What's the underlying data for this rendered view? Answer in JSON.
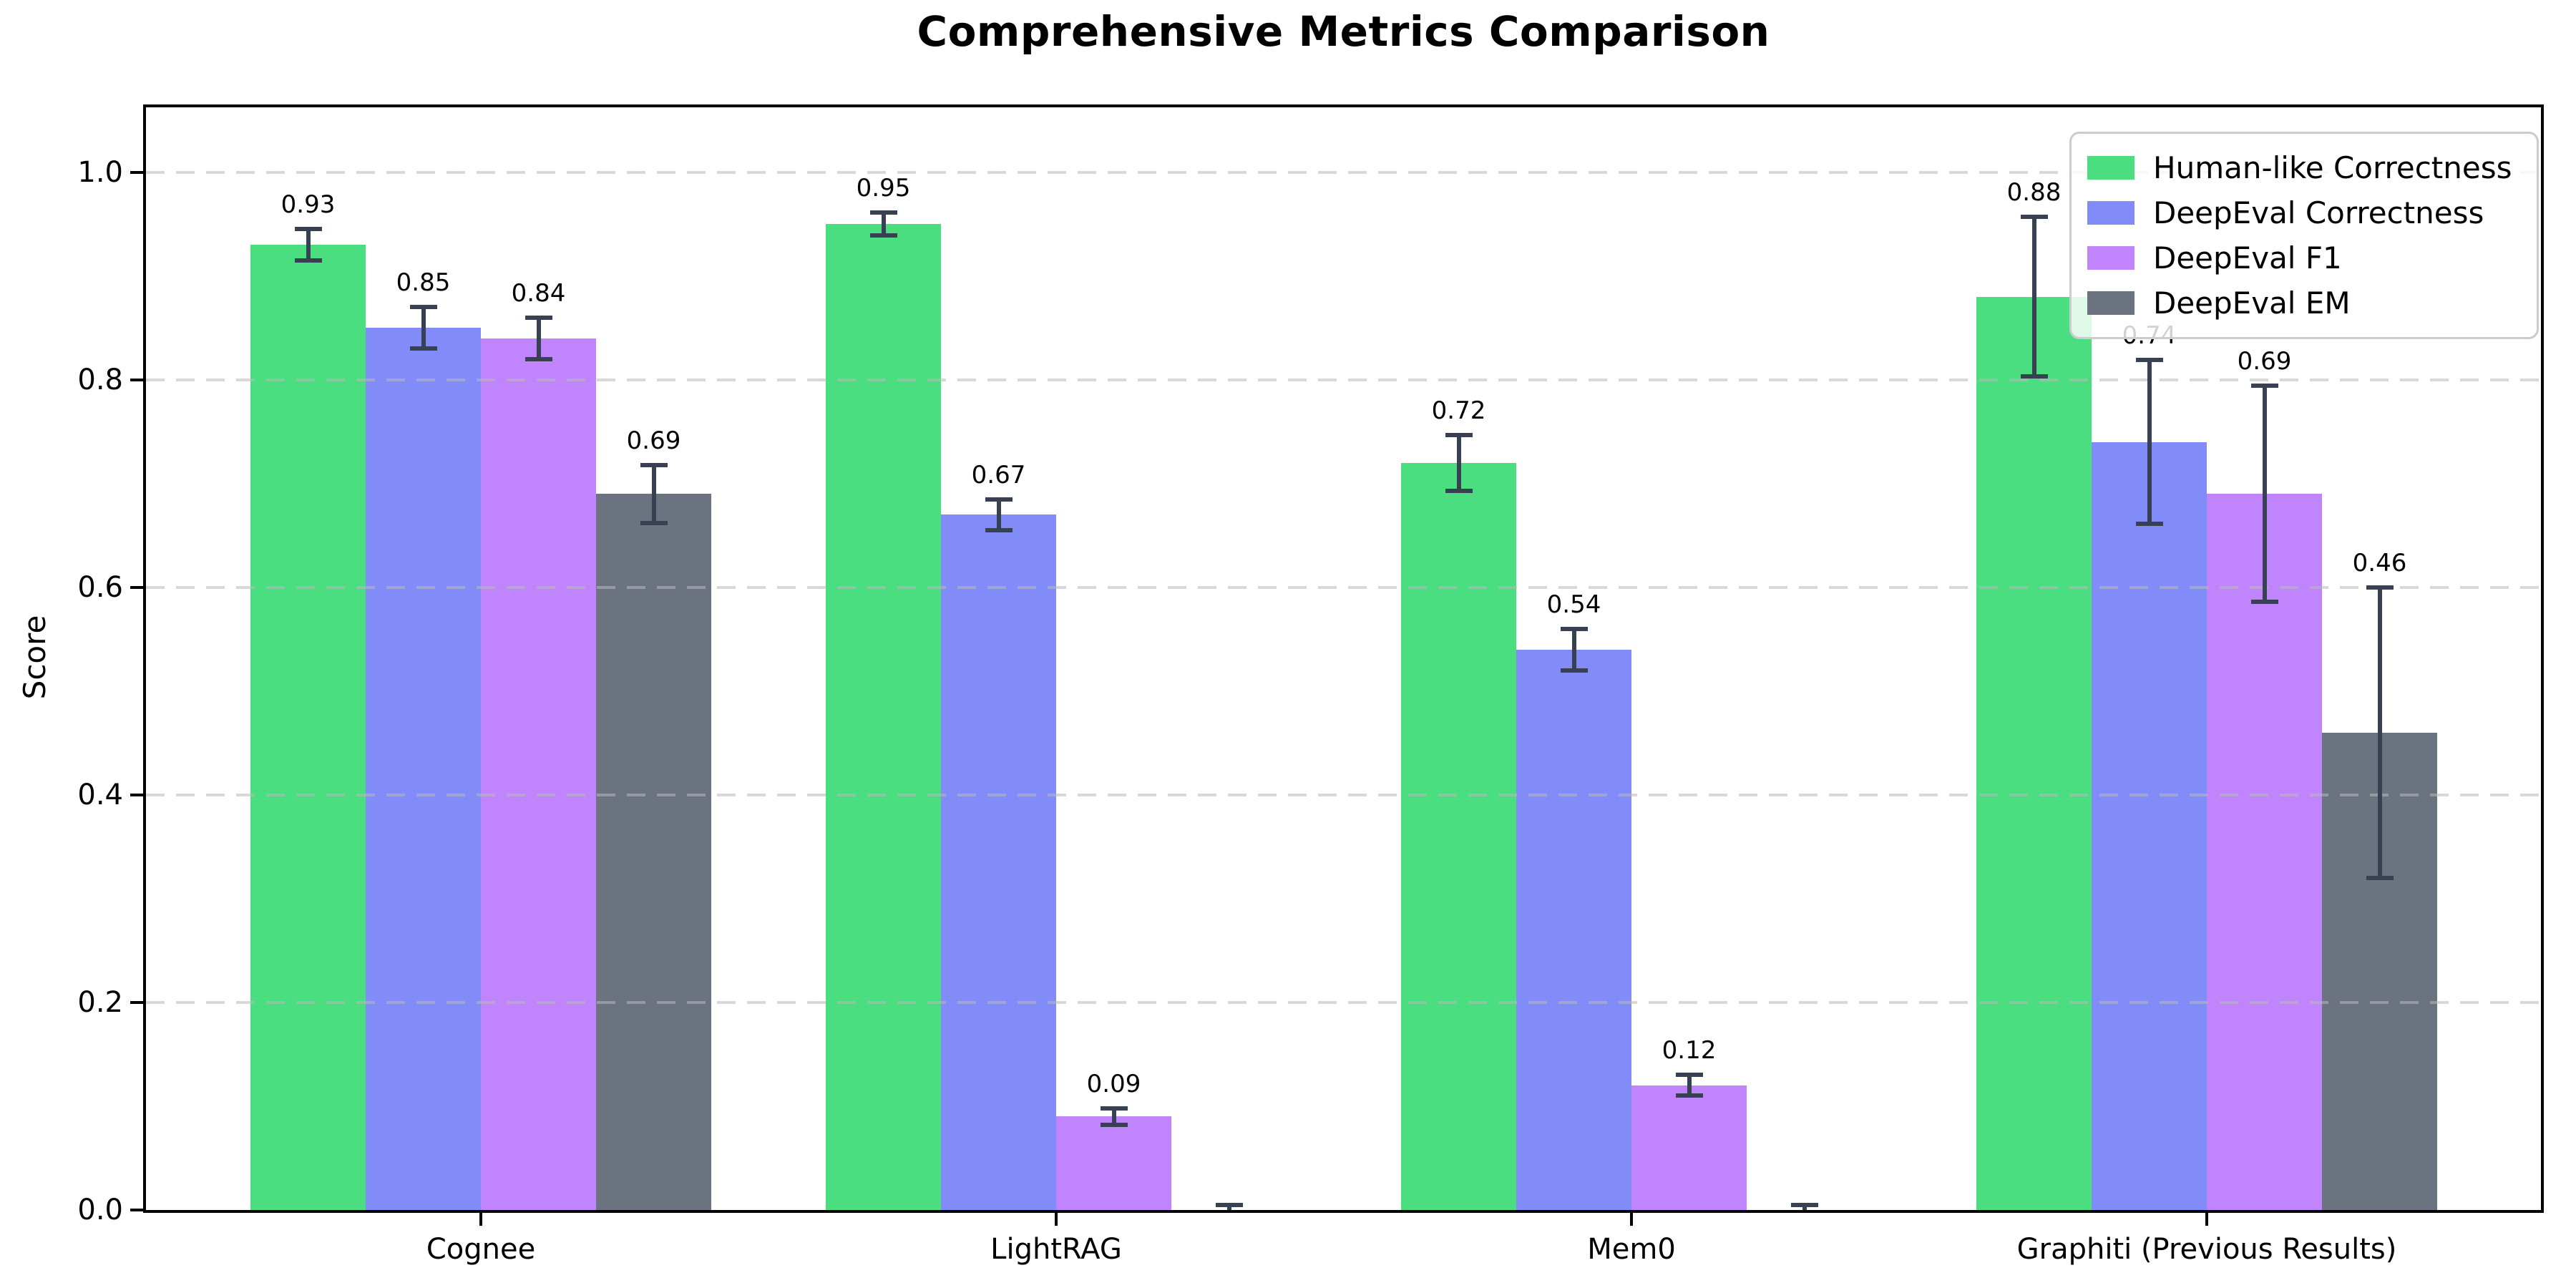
{
  "chart_data": {
    "type": "bar",
    "title": "Comprehensive Metrics Comparison",
    "xlabel": "",
    "ylabel": "Score",
    "categories": [
      "Cognee",
      "LightRAG",
      "Mem0",
      "Graphiti (Previous Results)"
    ],
    "series": [
      {
        "name": "Human-like Correctness",
        "color": "#4ade80",
        "values": [
          0.93,
          0.95,
          0.72,
          0.88
        ],
        "errors": [
          0.015,
          0.011,
          0.027,
          0.077
        ],
        "labels": [
          "0.93",
          "0.95",
          "0.72",
          "0.88"
        ]
      },
      {
        "name": "DeepEval Correctness",
        "color": "#818cf8",
        "values": [
          0.85,
          0.67,
          0.54,
          0.74
        ],
        "errors": [
          0.02,
          0.015,
          0.02,
          0.079
        ],
        "labels": [
          "0.85",
          "0.67",
          "0.54",
          "0.74"
        ]
      },
      {
        "name": "DeepEval F1",
        "color": "#c084fc",
        "values": [
          0.84,
          0.09,
          0.12,
          0.69
        ],
        "errors": [
          0.02,
          0.008,
          0.01,
          0.104
        ],
        "labels": [
          "0.84",
          "0.09",
          "0.12",
          "0.69"
        ]
      },
      {
        "name": "DeepEval EM",
        "color": "#6b7280",
        "values": [
          0.69,
          0.0,
          0.0,
          0.46
        ],
        "errors": [
          0.028,
          0.005,
          0.005,
          0.14
        ],
        "labels": [
          "0.69",
          null,
          null,
          "0.46"
        ]
      }
    ],
    "ylim": [
      0,
      1.0625
    ],
    "yticks": [
      0.0,
      0.2,
      0.4,
      0.6,
      0.8,
      1.0
    ],
    "ytick_labels": [
      "0.0",
      "0.2",
      "0.4",
      "0.6",
      "0.8",
      "1.0"
    ],
    "grid": "horizontal-dashed",
    "grid_on": true,
    "legend_position": "upper right",
    "error_bar_color": "#374151",
    "background_color": "#ffffff"
  }
}
